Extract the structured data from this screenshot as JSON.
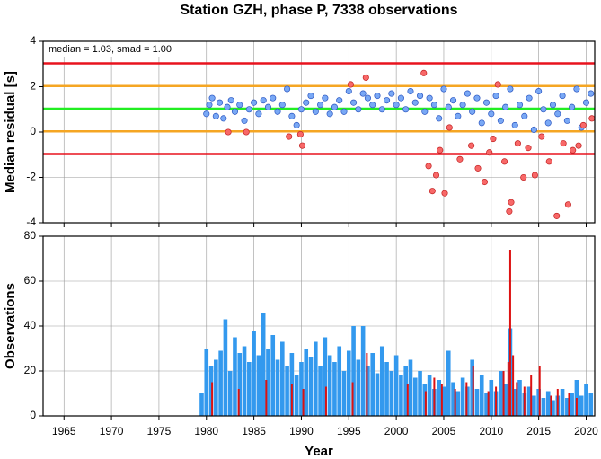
{
  "chart_data": [
    {
      "type": "scatter",
      "title": "Station GZH, phase P, 7338 observations",
      "ylabel": "Median residual [s]",
      "annotation": "median = 1.03, smad = 1.00",
      "xlim": [
        1962.8,
        2020.9
      ],
      "ylim": [
        -4,
        4
      ],
      "xticks": [
        1965,
        1970,
        1975,
        1980,
        1985,
        1990,
        1995,
        2000,
        2005,
        2010,
        2015,
        2020
      ],
      "yticks": [
        -4,
        -2,
        0,
        2,
        4
      ],
      "grid": true,
      "reference_lines": [
        {
          "value": 3.03,
          "color": "#e8131e"
        },
        {
          "value": 2.03,
          "color": "#f5a623"
        },
        {
          "value": 1.03,
          "color": "#22ee22"
        },
        {
          "value": 0.03,
          "color": "#f5a623"
        },
        {
          "value": -0.97,
          "color": "#e8131e"
        }
      ],
      "series": [
        {
          "color": "#79a8f5",
          "x": [
            1980.0,
            1980.3,
            1980.6,
            1981.0,
            1981.4,
            1981.8,
            1982.2,
            1982.6,
            1983.0,
            1983.5,
            1984.0,
            1984.5,
            1985.0,
            1985.5,
            1986.0,
            1986.5,
            1987.0,
            1987.5,
            1988.0,
            1988.5,
            1989.0,
            1989.5,
            1990.0,
            1990.5,
            1991.0,
            1991.5,
            1992.0,
            1992.5,
            1993.0,
            1993.5,
            1994.0,
            1994.5,
            1995.0,
            1995.5,
            1996.0,
            1996.5,
            1997.0,
            1997.5,
            1998.0,
            1998.5,
            1999.0,
            1999.5,
            2000.0,
            2000.5,
            2001.0,
            2001.5,
            2002.0,
            2002.5,
            2003.0,
            2003.5,
            2004.0,
            2004.5,
            2005.0,
            2005.5,
            2006.0,
            2006.5,
            2007.0,
            2007.5,
            2008.0,
            2008.5,
            2009.0,
            2009.5,
            2010.0,
            2010.5,
            2011.0,
            2011.5,
            2012.0,
            2012.5,
            2013.0,
            2013.5,
            2014.0,
            2014.5,
            2015.0,
            2015.5,
            2016.0,
            2016.5,
            2017.0,
            2017.5,
            2018.0,
            2018.5,
            2019.0,
            2019.5,
            2020.0,
            2020.5
          ],
          "values": [
            0.8,
            1.2,
            1.5,
            0.7,
            1.3,
            0.6,
            1.1,
            1.4,
            0.9,
            1.2,
            0.5,
            1.0,
            1.3,
            0.8,
            1.4,
            1.1,
            1.5,
            0.9,
            1.2,
            1.9,
            0.7,
            0.3,
            1.0,
            1.3,
            1.6,
            0.9,
            1.2,
            1.5,
            0.8,
            1.1,
            1.4,
            0.9,
            1.8,
            1.3,
            1.0,
            1.7,
            1.5,
            1.2,
            1.6,
            1.0,
            1.4,
            1.7,
            1.2,
            1.5,
            1.0,
            1.8,
            1.3,
            1.6,
            0.9,
            1.5,
            1.2,
            0.6,
            1.9,
            1.1,
            1.4,
            0.7,
            1.2,
            1.7,
            0.9,
            1.5,
            0.4,
            1.3,
            0.8,
            1.6,
            0.5,
            1.1,
            1.9,
            0.3,
            1.2,
            0.7,
            1.5,
            0.1,
            1.8,
            1.0,
            0.4,
            1.2,
            0.8,
            1.6,
            0.5,
            1.1,
            1.9,
            0.2,
            1.3,
            1.7
          ]
        },
        {
          "color": "#f86868",
          "x": [
            1982.3,
            1984.2,
            1988.7,
            1989.9,
            1990.1,
            1995.2,
            1996.8,
            2002.9,
            2003.4,
            2003.8,
            2004.2,
            2004.6,
            2005.1,
            2005.6,
            2006.7,
            2007.9,
            2008.6,
            2009.3,
            2009.8,
            2010.2,
            2010.7,
            2011.4,
            2011.9,
            2012.1,
            2012.8,
            2013.4,
            2013.9,
            2014.6,
            2015.3,
            2016.1,
            2016.9,
            2017.6,
            2018.1,
            2018.6,
            2019.2,
            2019.7,
            2020.6
          ],
          "values": [
            0.0,
            0.0,
            -0.2,
            -0.1,
            -0.6,
            2.1,
            2.4,
            2.6,
            -1.5,
            -2.6,
            -1.9,
            -0.8,
            -2.7,
            0.2,
            -1.2,
            -0.6,
            -1.6,
            -2.2,
            -0.9,
            -0.3,
            2.1,
            -1.3,
            -3.5,
            -3.1,
            -0.5,
            -2.0,
            -0.7,
            -1.9,
            -0.2,
            -1.3,
            -3.7,
            -0.5,
            -3.2,
            -0.8,
            -0.6,
            0.3,
            0.6
          ]
        }
      ]
    },
    {
      "type": "bar",
      "xlabel": "Year",
      "ylabel": "Observations",
      "xlim": [
        1962.8,
        2020.9
      ],
      "ylim": [
        0,
        80
      ],
      "xticks": [
        1965,
        1970,
        1975,
        1980,
        1985,
        1990,
        1995,
        2000,
        2005,
        2010,
        2015,
        2020
      ],
      "yticks": [
        0,
        20,
        40,
        60,
        80
      ],
      "grid": true,
      "series": [
        {
          "color": "#3399ee",
          "x": [
            1979.5,
            1980.0,
            1980.5,
            1981.0,
            1981.5,
            1982.0,
            1982.5,
            1983.0,
            1983.5,
            1984.0,
            1984.5,
            1985.0,
            1985.5,
            1986.0,
            1986.5,
            1987.0,
            1987.5,
            1988.0,
            1988.5,
            1989.0,
            1989.5,
            1990.0,
            1990.5,
            1991.0,
            1991.5,
            1992.0,
            1992.5,
            1993.0,
            1993.5,
            1994.0,
            1994.5,
            1995.0,
            1995.5,
            1996.0,
            1996.5,
            1997.0,
            1997.5,
            1998.0,
            1998.5,
            1999.0,
            1999.5,
            2000.0,
            2000.5,
            2001.0,
            2001.5,
            2002.0,
            2002.5,
            2003.0,
            2003.5,
            2004.0,
            2004.5,
            2005.0,
            2005.5,
            2006.0,
            2006.5,
            2007.0,
            2007.5,
            2008.0,
            2008.5,
            2009.0,
            2009.5,
            2010.0,
            2010.5,
            2011.0,
            2011.5,
            2012.0,
            2012.5,
            2013.0,
            2013.5,
            2014.0,
            2014.5,
            2015.0,
            2015.5,
            2016.0,
            2016.5,
            2017.0,
            2017.5,
            2018.0,
            2018.5,
            2019.0,
            2019.5,
            2020.0,
            2020.5
          ],
          "values": [
            10,
            30,
            22,
            25,
            29,
            43,
            20,
            35,
            28,
            31,
            24,
            38,
            27,
            46,
            30,
            36,
            25,
            33,
            22,
            28,
            18,
            24,
            30,
            26,
            33,
            22,
            35,
            27,
            24,
            31,
            20,
            29,
            40,
            25,
            40,
            22,
            28,
            19,
            31,
            24,
            20,
            27,
            18,
            22,
            25,
            17,
            20,
            14,
            18,
            12,
            16,
            13,
            29,
            15,
            11,
            17,
            13,
            25,
            12,
            18,
            10,
            16,
            11,
            20,
            14,
            39,
            12,
            16,
            10,
            13,
            9,
            12,
            8,
            11,
            7,
            9,
            12,
            8,
            10,
            16,
            9,
            14,
            10
          ]
        },
        {
          "color": "#dd1111",
          "x": [
            1980.6,
            1983.4,
            1986.3,
            1989.0,
            1990.2,
            1992.6,
            1995.4,
            1996.9,
            2001.2,
            2003.1,
            2004.0,
            2004.8,
            2006.2,
            2007.4,
            2008.1,
            2009.7,
            2010.5,
            2011.3,
            2011.8,
            2012.0,
            2012.3,
            2012.7,
            2013.5,
            2014.2,
            2015.1,
            2016.3,
            2017.0,
            2018.2,
            2019.0
          ],
          "values": [
            15,
            12,
            16,
            14,
            12,
            13,
            15,
            28,
            14,
            11,
            17,
            14,
            12,
            15,
            22,
            11,
            13,
            20,
            24,
            74,
            27,
            15,
            13,
            18,
            22,
            9,
            12,
            10,
            8
          ]
        }
      ]
    }
  ]
}
